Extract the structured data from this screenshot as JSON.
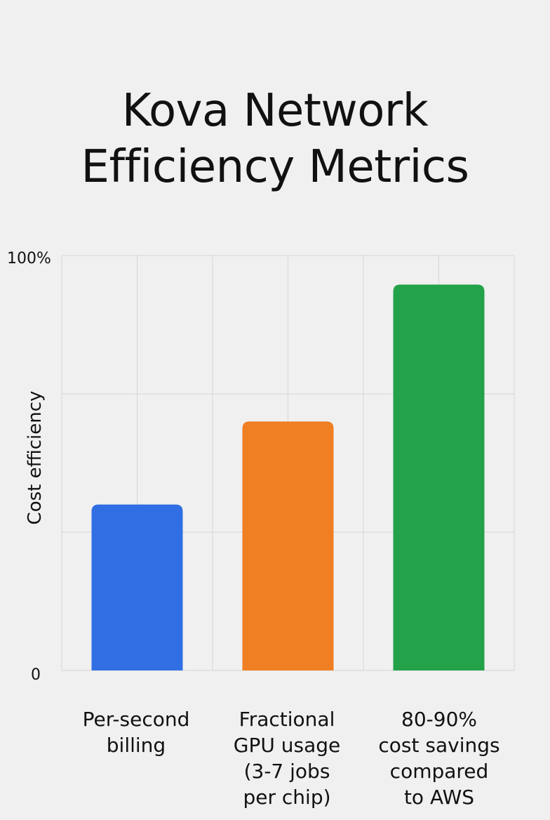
{
  "chart_data": {
    "type": "bar",
    "title": "Kova Network Efficiency Metrics",
    "title_lines": [
      "Kova Network",
      "Efficiency Metrics"
    ],
    "ylabel": "Cost efficiency",
    "xlabel": "",
    "ylim": [
      0,
      100
    ],
    "y_tick_labels": [
      "0",
      "100%"
    ],
    "grid": true,
    "categories": [
      "Per-second billing",
      "Fractional GPU usage (3-7 jobs per chip)",
      "80-90% cost savings compared to AWS"
    ],
    "category_lines": [
      "Per-second\nbilling",
      "Fractional\nGPU usage\n(3-7 jobs\nper chip)",
      "80-90%\ncost savings\ncompared\nto AWS"
    ],
    "values": [
      40,
      60,
      93
    ],
    "colors": [
      "#2f6fe3",
      "#f07e22",
      "#23a24a"
    ]
  }
}
